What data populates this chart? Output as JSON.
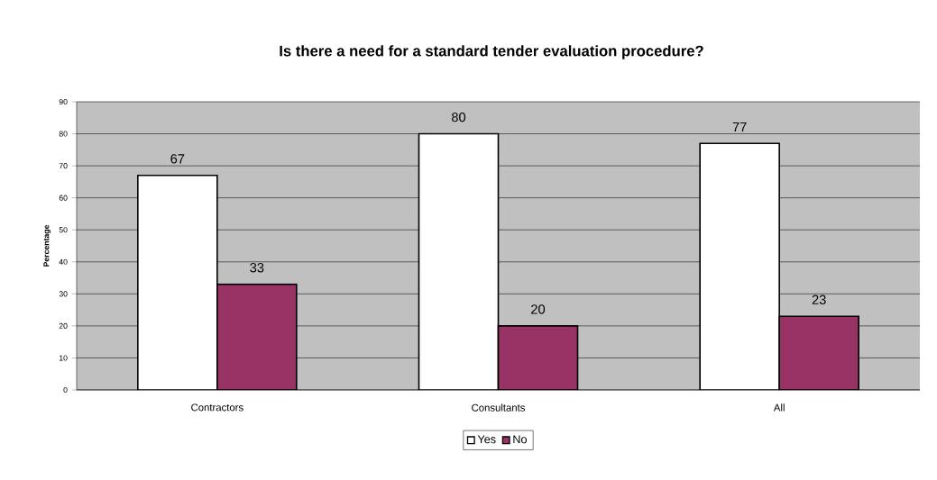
{
  "chart_data": {
    "type": "bar",
    "title": "Is there a need for a standard tender evaluation procedure?",
    "ylabel": "Percentage",
    "categories": [
      "Contractors",
      "Consultants",
      "All"
    ],
    "series": [
      {
        "name": "Yes",
        "color": "#ffffff",
        "values": [
          67,
          80,
          77
        ]
      },
      {
        "name": "No",
        "color": "#993366",
        "values": [
          33,
          20,
          23
        ]
      }
    ],
    "ylim": [
      0,
      90
    ],
    "yticks": [
      0,
      10,
      20,
      30,
      40,
      50,
      60,
      70,
      80,
      90
    ],
    "grid": "y",
    "legend": "bottom",
    "data_labels": true
  }
}
